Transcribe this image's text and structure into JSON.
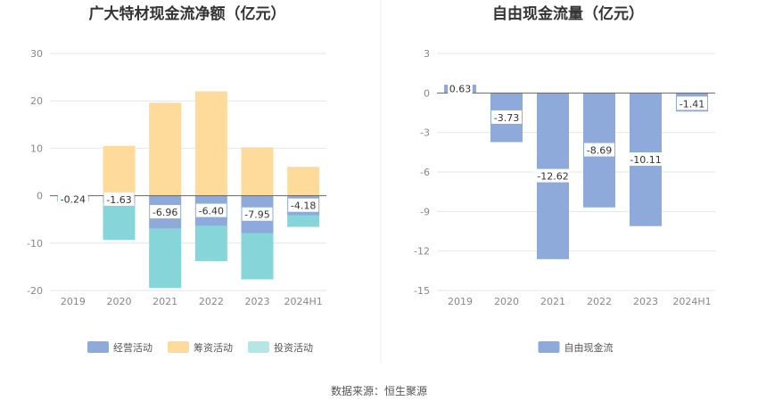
{
  "source": "数据来源：恒生聚源",
  "colors": {
    "operating": "#8eaadb",
    "financing": "#fedb9b",
    "investing": "#86d5d8",
    "investing_legend": "#b4e6e6",
    "fcf": "#8eaadb",
    "grid": "#e6e6ee",
    "zero": "#666666"
  },
  "chart_data": [
    {
      "type": "bar",
      "stacked": true,
      "title": "广大特材现金流净额（亿元）",
      "categories": [
        "2019",
        "2020",
        "2021",
        "2022",
        "2023",
        "2024H1"
      ],
      "ylim": [
        -20,
        30
      ],
      "yticks": [
        30,
        20,
        10,
        0,
        -10,
        -20
      ],
      "ytick_labels": [
        "30",
        "20",
        "10",
        "0",
        "-10",
        "-20"
      ],
      "grid": true,
      "legend_position": "bottom",
      "series": [
        {
          "name": "经营活动",
          "key": "operating",
          "values": [
            -0.24,
            -1.63,
            -6.96,
            -6.4,
            -7.95,
            -4.18
          ],
          "labels": [
            "-0.24",
            "-1.63",
            "-6.96",
            "-6.40",
            "-7.95",
            "-4.18"
          ]
        },
        {
          "name": "筹资活动",
          "key": "financing",
          "values": [
            0.1,
            10.5,
            19.6,
            22.0,
            10.2,
            6.1
          ]
        },
        {
          "name": "投资活动",
          "key": "investing",
          "values": [
            -1.0,
            -7.7,
            -12.5,
            -7.4,
            -9.7,
            -2.4
          ]
        }
      ]
    },
    {
      "type": "bar",
      "title": "自由现金流量（亿元）",
      "categories": [
        "2019",
        "2020",
        "2021",
        "2022",
        "2023",
        "2024H1"
      ],
      "ylim": [
        -15,
        3
      ],
      "yticks": [
        3,
        0,
        -3,
        -6,
        -9,
        -12,
        -15
      ],
      "ytick_labels": [
        "3",
        "0",
        "-3",
        "-6",
        "-9",
        "-12",
        "-15"
      ],
      "grid": true,
      "legend_position": "bottom",
      "series": [
        {
          "name": "自由现金流",
          "key": "fcf",
          "values": [
            0.63,
            -3.73,
            -12.62,
            -8.69,
            -10.11,
            -1.41
          ],
          "labels": [
            "0.63",
            "-3.73",
            "-12.62",
            "-8.69",
            "-10.11",
            "-1.41"
          ]
        }
      ]
    }
  ]
}
